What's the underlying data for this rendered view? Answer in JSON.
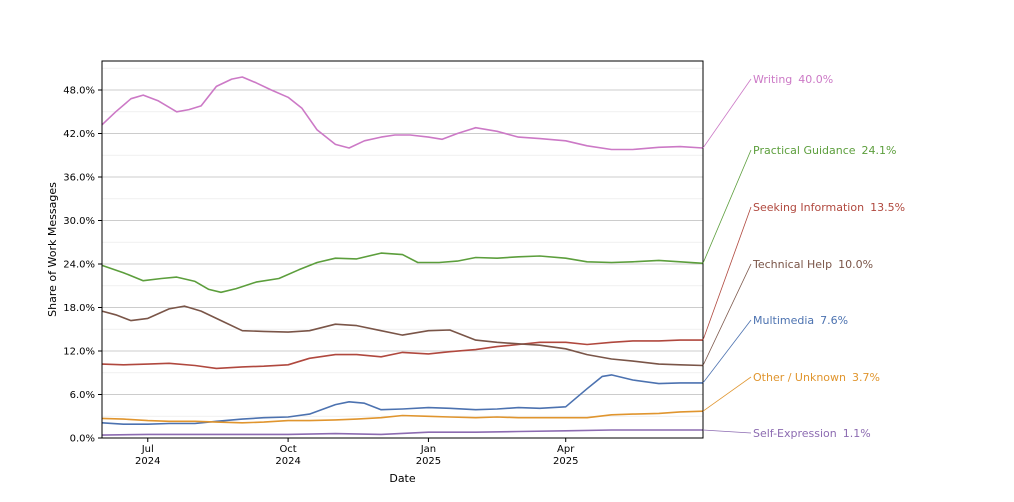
{
  "chart_data": {
    "type": "line",
    "title": "",
    "xlabel": "Date",
    "ylabel": "Share of Work Messages",
    "x_range": [
      "2024-06-01",
      "2025-06-30"
    ],
    "ylim": [
      0,
      52
    ],
    "y_ticks": [
      0,
      6,
      12,
      18,
      24,
      30,
      36,
      42,
      48
    ],
    "y_tick_labels": [
      "0.0%",
      "6.0%",
      "12.0%",
      "18.0%",
      "24.0%",
      "30.0%",
      "36.0%",
      "42.0%",
      "48.0%"
    ],
    "x_ticks": [
      {
        "date": "2024-07-01",
        "month": "Jul",
        "year": "2024"
      },
      {
        "date": "2024-10-01",
        "month": "Oct",
        "year": "2024"
      },
      {
        "date": "2025-01-01",
        "month": "Jan",
        "year": "2025"
      },
      {
        "date": "2025-04-01",
        "month": "Apr",
        "year": "2025"
      }
    ],
    "grid": true,
    "series": [
      {
        "name": "Writing",
        "end_label": "40.0%",
        "color": "#cc79c6",
        "points": [
          [
            "2024-06-01",
            43.2
          ],
          [
            "2024-06-10",
            45.0
          ],
          [
            "2024-06-20",
            46.8
          ],
          [
            "2024-06-28",
            47.3
          ],
          [
            "2024-07-08",
            46.5
          ],
          [
            "2024-07-20",
            45.0
          ],
          [
            "2024-07-28",
            45.3
          ],
          [
            "2024-08-05",
            45.8
          ],
          [
            "2024-08-15",
            48.5
          ],
          [
            "2024-08-25",
            49.5
          ],
          [
            "2024-09-01",
            49.8
          ],
          [
            "2024-09-10",
            49.0
          ],
          [
            "2024-09-20",
            48.0
          ],
          [
            "2024-10-01",
            47.0
          ],
          [
            "2024-10-10",
            45.5
          ],
          [
            "2024-10-20",
            42.5
          ],
          [
            "2024-11-01",
            40.5
          ],
          [
            "2024-11-10",
            40.0
          ],
          [
            "2024-11-20",
            41.0
          ],
          [
            "2024-12-01",
            41.5
          ],
          [
            "2024-12-10",
            41.8
          ],
          [
            "2024-12-20",
            41.8
          ],
          [
            "2025-01-01",
            41.5
          ],
          [
            "2025-01-10",
            41.2
          ],
          [
            "2025-01-20",
            42.0
          ],
          [
            "2025-02-01",
            42.8
          ],
          [
            "2025-02-15",
            42.3
          ],
          [
            "2025-03-01",
            41.5
          ],
          [
            "2025-03-15",
            41.3
          ],
          [
            "2025-04-01",
            41.0
          ],
          [
            "2025-04-15",
            40.3
          ],
          [
            "2025-05-01",
            39.8
          ],
          [
            "2025-05-15",
            39.8
          ],
          [
            "2025-06-01",
            40.1
          ],
          [
            "2025-06-15",
            40.2
          ],
          [
            "2025-06-30",
            40.0
          ]
        ]
      },
      {
        "name": "Practical Guidance",
        "end_label": "24.1%",
        "color": "#5c9e3c",
        "points": [
          [
            "2024-06-01",
            23.8
          ],
          [
            "2024-06-15",
            22.8
          ],
          [
            "2024-06-28",
            21.7
          ],
          [
            "2024-07-10",
            22.0
          ],
          [
            "2024-07-20",
            22.2
          ],
          [
            "2024-08-01",
            21.6
          ],
          [
            "2024-08-10",
            20.5
          ],
          [
            "2024-08-18",
            20.1
          ],
          [
            "2024-08-28",
            20.6
          ],
          [
            "2024-09-10",
            21.5
          ],
          [
            "2024-09-25",
            22.0
          ],
          [
            "2024-10-08",
            23.2
          ],
          [
            "2024-10-20",
            24.2
          ],
          [
            "2024-11-01",
            24.8
          ],
          [
            "2024-11-15",
            24.7
          ],
          [
            "2024-12-01",
            25.5
          ],
          [
            "2024-12-15",
            25.3
          ],
          [
            "2024-12-25",
            24.2
          ],
          [
            "2025-01-08",
            24.2
          ],
          [
            "2025-01-20",
            24.4
          ],
          [
            "2025-02-01",
            24.9
          ],
          [
            "2025-02-15",
            24.8
          ],
          [
            "2025-03-01",
            25.0
          ],
          [
            "2025-03-15",
            25.1
          ],
          [
            "2025-04-01",
            24.8
          ],
          [
            "2025-04-15",
            24.3
          ],
          [
            "2025-05-01",
            24.2
          ],
          [
            "2025-05-15",
            24.3
          ],
          [
            "2025-06-01",
            24.5
          ],
          [
            "2025-06-15",
            24.3
          ],
          [
            "2025-06-30",
            24.1
          ]
        ]
      },
      {
        "name": "Seeking Information",
        "end_label": "13.5%",
        "color": "#b0483e",
        "points": [
          [
            "2024-06-01",
            10.2
          ],
          [
            "2024-06-15",
            10.1
          ],
          [
            "2024-07-01",
            10.2
          ],
          [
            "2024-07-15",
            10.3
          ],
          [
            "2024-08-01",
            10.0
          ],
          [
            "2024-08-15",
            9.6
          ],
          [
            "2024-09-01",
            9.8
          ],
          [
            "2024-09-15",
            9.9
          ],
          [
            "2024-10-01",
            10.1
          ],
          [
            "2024-10-15",
            11.0
          ],
          [
            "2024-11-01",
            11.5
          ],
          [
            "2024-11-15",
            11.5
          ],
          [
            "2024-12-01",
            11.2
          ],
          [
            "2024-12-15",
            11.8
          ],
          [
            "2025-01-01",
            11.6
          ],
          [
            "2025-01-15",
            11.9
          ],
          [
            "2025-02-01",
            12.2
          ],
          [
            "2025-02-15",
            12.6
          ],
          [
            "2025-03-01",
            12.9
          ],
          [
            "2025-03-15",
            13.2
          ],
          [
            "2025-04-01",
            13.2
          ],
          [
            "2025-04-15",
            12.9
          ],
          [
            "2025-05-01",
            13.2
          ],
          [
            "2025-05-15",
            13.4
          ],
          [
            "2025-06-01",
            13.4
          ],
          [
            "2025-06-15",
            13.5
          ],
          [
            "2025-06-30",
            13.5
          ]
        ]
      },
      {
        "name": "Technical Help",
        "end_label": "10.0%",
        "color": "#7a5548",
        "points": [
          [
            "2024-06-01",
            17.5
          ],
          [
            "2024-06-10",
            17.0
          ],
          [
            "2024-06-20",
            16.2
          ],
          [
            "2024-07-01",
            16.5
          ],
          [
            "2024-07-15",
            17.8
          ],
          [
            "2024-07-25",
            18.2
          ],
          [
            "2024-08-05",
            17.5
          ],
          [
            "2024-08-20",
            16.0
          ],
          [
            "2024-09-01",
            14.8
          ],
          [
            "2024-09-15",
            14.7
          ],
          [
            "2024-10-01",
            14.6
          ],
          [
            "2024-10-15",
            14.8
          ],
          [
            "2024-11-01",
            15.7
          ],
          [
            "2024-11-15",
            15.5
          ],
          [
            "2024-12-01",
            14.8
          ],
          [
            "2024-12-15",
            14.2
          ],
          [
            "2025-01-01",
            14.8
          ],
          [
            "2025-01-15",
            14.9
          ],
          [
            "2025-02-01",
            13.5
          ],
          [
            "2025-02-15",
            13.2
          ],
          [
            "2025-03-01",
            13.0
          ],
          [
            "2025-03-15",
            12.8
          ],
          [
            "2025-04-01",
            12.3
          ],
          [
            "2025-04-15",
            11.5
          ],
          [
            "2025-05-01",
            10.9
          ],
          [
            "2025-05-15",
            10.6
          ],
          [
            "2025-06-01",
            10.2
          ],
          [
            "2025-06-15",
            10.1
          ],
          [
            "2025-06-30",
            10.0
          ]
        ]
      },
      {
        "name": "Multimedia",
        "end_label": "7.6%",
        "color": "#4c72b0",
        "points": [
          [
            "2024-06-01",
            2.1
          ],
          [
            "2024-06-15",
            1.9
          ],
          [
            "2024-07-01",
            1.9
          ],
          [
            "2024-07-15",
            2.0
          ],
          [
            "2024-08-01",
            2.0
          ],
          [
            "2024-08-15",
            2.3
          ],
          [
            "2024-09-01",
            2.6
          ],
          [
            "2024-09-15",
            2.8
          ],
          [
            "2024-10-01",
            2.9
          ],
          [
            "2024-10-15",
            3.3
          ],
          [
            "2024-11-01",
            4.6
          ],
          [
            "2024-11-10",
            5.0
          ],
          [
            "2024-11-20",
            4.8
          ],
          [
            "2024-12-01",
            3.9
          ],
          [
            "2024-12-15",
            4.0
          ],
          [
            "2025-01-01",
            4.2
          ],
          [
            "2025-01-15",
            4.1
          ],
          [
            "2025-02-01",
            3.9
          ],
          [
            "2025-02-15",
            4.0
          ],
          [
            "2025-03-01",
            4.2
          ],
          [
            "2025-03-15",
            4.1
          ],
          [
            "2025-04-01",
            4.3
          ],
          [
            "2025-04-15",
            6.8
          ],
          [
            "2025-04-25",
            8.5
          ],
          [
            "2025-05-01",
            8.7
          ],
          [
            "2025-05-15",
            8.0
          ],
          [
            "2025-06-01",
            7.5
          ],
          [
            "2025-06-15",
            7.6
          ],
          [
            "2025-06-30",
            7.6
          ]
        ]
      },
      {
        "name": "Other / Unknown",
        "end_label": "3.7%",
        "color": "#e0952e",
        "points": [
          [
            "2024-06-01",
            2.7
          ],
          [
            "2024-06-15",
            2.6
          ],
          [
            "2024-07-01",
            2.4
          ],
          [
            "2024-07-15",
            2.3
          ],
          [
            "2024-08-01",
            2.3
          ],
          [
            "2024-08-15",
            2.2
          ],
          [
            "2024-09-01",
            2.1
          ],
          [
            "2024-09-15",
            2.2
          ],
          [
            "2024-10-01",
            2.4
          ],
          [
            "2024-10-15",
            2.4
          ],
          [
            "2024-11-01",
            2.5
          ],
          [
            "2024-11-15",
            2.6
          ],
          [
            "2024-12-01",
            2.8
          ],
          [
            "2024-12-15",
            3.1
          ],
          [
            "2025-01-01",
            3.0
          ],
          [
            "2025-01-15",
            2.9
          ],
          [
            "2025-02-01",
            2.8
          ],
          [
            "2025-02-15",
            2.9
          ],
          [
            "2025-03-01",
            2.8
          ],
          [
            "2025-03-15",
            2.8
          ],
          [
            "2025-04-01",
            2.8
          ],
          [
            "2025-04-15",
            2.8
          ],
          [
            "2025-05-01",
            3.2
          ],
          [
            "2025-05-15",
            3.3
          ],
          [
            "2025-06-01",
            3.4
          ],
          [
            "2025-06-15",
            3.6
          ],
          [
            "2025-06-30",
            3.7
          ]
        ]
      },
      {
        "name": "Self-Expression",
        "end_label": "1.1%",
        "color": "#8c6bb1",
        "points": [
          [
            "2024-06-01",
            0.4
          ],
          [
            "2024-07-01",
            0.5
          ],
          [
            "2024-08-01",
            0.5
          ],
          [
            "2024-09-01",
            0.5
          ],
          [
            "2024-10-01",
            0.5
          ],
          [
            "2024-11-01",
            0.6
          ],
          [
            "2024-12-01",
            0.5
          ],
          [
            "2025-01-01",
            0.8
          ],
          [
            "2025-02-01",
            0.8
          ],
          [
            "2025-03-01",
            0.9
          ],
          [
            "2025-04-01",
            1.0
          ],
          [
            "2025-05-01",
            1.1
          ],
          [
            "2025-06-01",
            1.1
          ],
          [
            "2025-06-30",
            1.1
          ]
        ]
      }
    ]
  }
}
